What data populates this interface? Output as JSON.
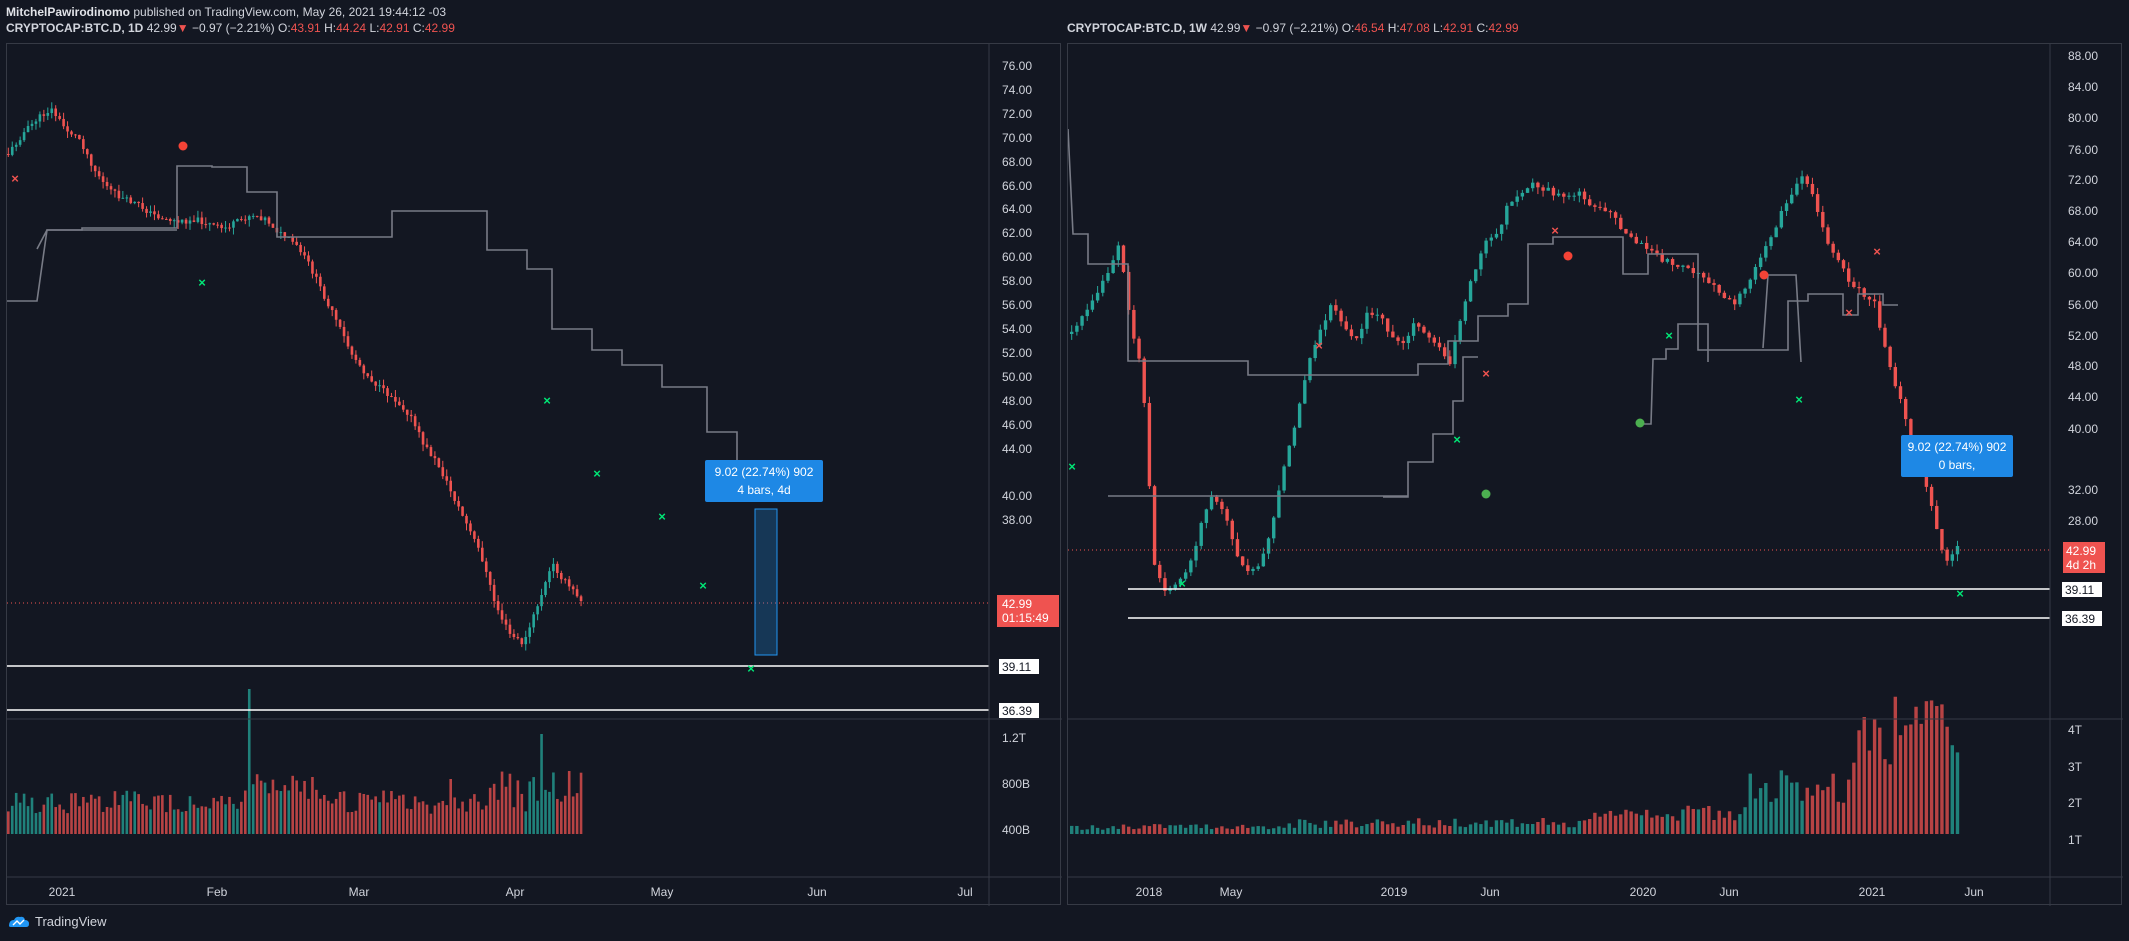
{
  "publish_line": {
    "author": "MitchelPawirodinomo",
    "text": " published on TradingView.com, May 26, 2021 19:44:12 -03"
  },
  "brand": "TradingView",
  "colors": {
    "bg": "#131722",
    "up": "#26a69a",
    "down": "#ef5350",
    "grid": "#363a45",
    "text": "#d1d4dc",
    "level": "#ffffff",
    "stop_line": "#787b86",
    "measure": "#2196f3"
  },
  "left_chart": {
    "symbol": "CRYPTOCAP:BTC.D, 1D",
    "last": "42.99",
    "change": "−0.97 (−2.21%)",
    "open_label": "O:",
    "open": "43.91",
    "high_label": "H:",
    "high": "44.24",
    "low_label": "L:",
    "low": "42.91",
    "close_label": "C:",
    "close": "42.99",
    "price_axis": [
      "76.00",
      "74.00",
      "72.00",
      "70.00",
      "68.00",
      "66.00",
      "64.00",
      "62.00",
      "60.00",
      "58.00",
      "56.00",
      "54.00",
      "52.00",
      "50.00",
      "48.00",
      "46.00",
      "44.00",
      "40.00",
      "38.00"
    ],
    "last_price_tag": "42.99",
    "countdown": "01:15:49",
    "level_1": "39.11",
    "level_2": "36.39",
    "volume_axis": [
      "1.2T",
      "800B",
      "400B"
    ],
    "time_axis": [
      "2021",
      "Feb",
      "Mar",
      "Apr",
      "May",
      "Jun",
      "Jul"
    ],
    "measure_line1": "9.02 (22.74%) 902",
    "measure_line2": "4 bars, 4d"
  },
  "right_chart": {
    "symbol": "CRYPTOCAP:BTC.D, 1W",
    "last": "42.99",
    "change": "−0.97 (−2.21%)",
    "open_label": "O:",
    "open": "46.54",
    "high_label": "H:",
    "high": "47.08",
    "low_label": "L:",
    "low": "42.91",
    "close_label": "C:",
    "close": "42.99",
    "price_axis": [
      "88.00",
      "84.00",
      "80.00",
      "76.00",
      "72.00",
      "68.00",
      "64.00",
      "60.00",
      "56.00",
      "52.00",
      "48.00",
      "44.00",
      "40.00",
      "32.00",
      "28.00"
    ],
    "last_price_tag": "42.99",
    "countdown": "4d 2h",
    "level_1": "39.11",
    "level_2": "36.39",
    "volume_axis": [
      "4T",
      "3T",
      "2T",
      "1T"
    ],
    "time_axis": [
      "2018",
      "May",
      "2019",
      "Jun",
      "2020",
      "Jun",
      "2021",
      "Jun"
    ],
    "measure_line1": "9.02 (22.74%) 902",
    "measure_line2": "0 bars,"
  }
}
